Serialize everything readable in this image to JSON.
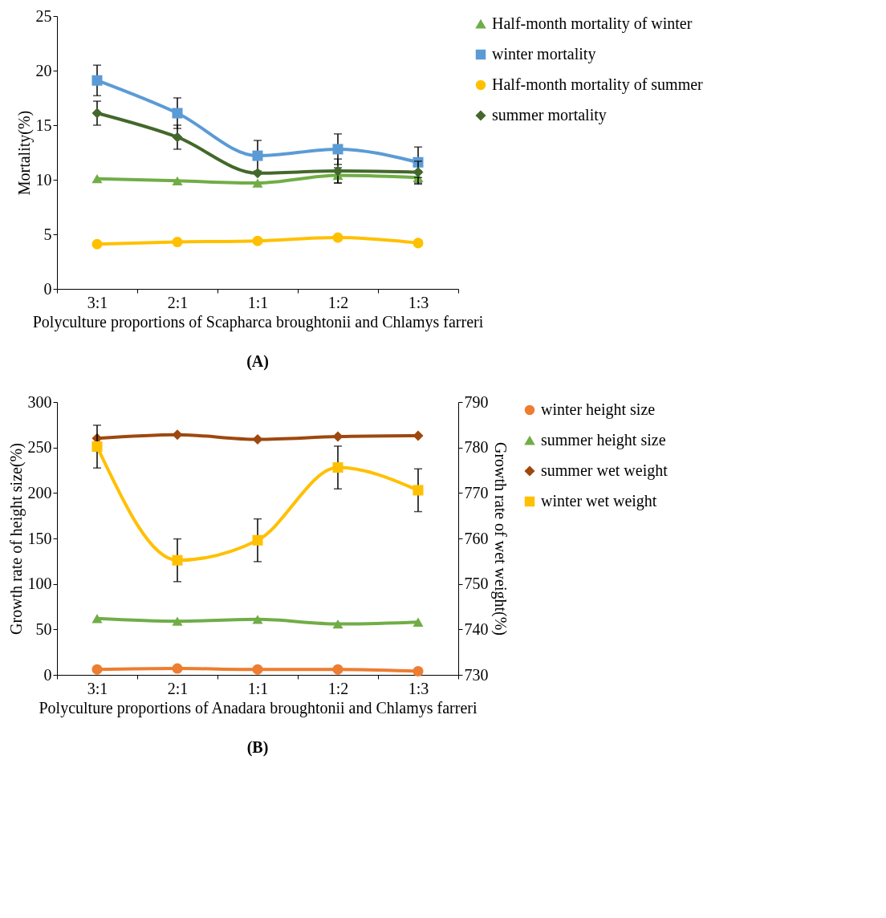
{
  "chart_data": [
    {
      "type": "line",
      "title": "(A)",
      "xlabel": "Polyculture proportions of Scapharca broughtonii and Chlamys farreri",
      "ylabel": "Mortality(%)",
      "categories": [
        "3:1",
        "2:1",
        "1:1",
        "1:2",
        "1:3"
      ],
      "ylim": [
        0,
        25
      ],
      "yticks": [
        0,
        5,
        10,
        15,
        20,
        25
      ],
      "grid": false,
      "legend": "right",
      "series": [
        {
          "name": "Half-month mortality of winter",
          "color": "#70ad47",
          "marker": "triangle",
          "values": [
            10.1,
            9.9,
            9.7,
            10.4,
            10.2
          ],
          "errors": [
            null,
            null,
            null,
            0.7,
            0.6
          ]
        },
        {
          "name": "winter mortality",
          "color": "#5b9bd5",
          "marker": "square",
          "values": [
            19.1,
            16.1,
            12.2,
            12.8,
            11.6
          ],
          "errors": [
            1.4,
            1.4,
            1.4,
            1.4,
            1.4
          ]
        },
        {
          "name": "Half-month mortality of summer",
          "color": "#ffc000",
          "marker": "circle",
          "values": [
            4.1,
            4.3,
            4.4,
            4.7,
            4.2
          ]
        },
        {
          "name": "summer mortality",
          "color": "#43682b",
          "marker": "diamond",
          "values": [
            16.1,
            13.9,
            10.6,
            10.8,
            10.7
          ],
          "errors": [
            1.1,
            1.1,
            null,
            1.1,
            1.0
          ]
        }
      ]
    },
    {
      "type": "line",
      "title": "(B)",
      "xlabel": "Polyculture proportions of Anadara broughtonii and Chlamys farreri",
      "ylabel": "Growth rate of height size(%)",
      "y2label": "Growth rate of wet weight(%)",
      "categories": [
        "3:1",
        "2:1",
        "1:1",
        "1:2",
        "1:3"
      ],
      "ylim": [
        0,
        300
      ],
      "yticks": [
        0,
        50,
        100,
        150,
        200,
        250,
        300
      ],
      "y2lim": [
        730,
        790
      ],
      "y2ticks": [
        730,
        740,
        750,
        760,
        770,
        780,
        790
      ],
      "grid": false,
      "legend": "right",
      "series": [
        {
          "name": "winter height size",
          "color": "#ed7d31",
          "marker": "circle",
          "values": [
            6,
            7,
            6,
            6,
            4
          ]
        },
        {
          "name": "summer height size",
          "color": "#70ad47",
          "marker": "triangle",
          "values": [
            62,
            59,
            61,
            56,
            58
          ]
        },
        {
          "name": "summer wet weight",
          "color": "#9e480e",
          "marker": "diamond",
          "axis": "y2",
          "values": [
            782,
            782.8,
            781.8,
            782.4,
            782.6
          ]
        },
        {
          "name": "winter wet weight",
          "color": "#ffc000",
          "marker": "square",
          "axis": "y2",
          "values": [
            780.2,
            755.2,
            759.6,
            775.6,
            770.6
          ],
          "errors": [
            4.7,
            4.7,
            4.7,
            4.7,
            4.7
          ]
        }
      ]
    }
  ]
}
